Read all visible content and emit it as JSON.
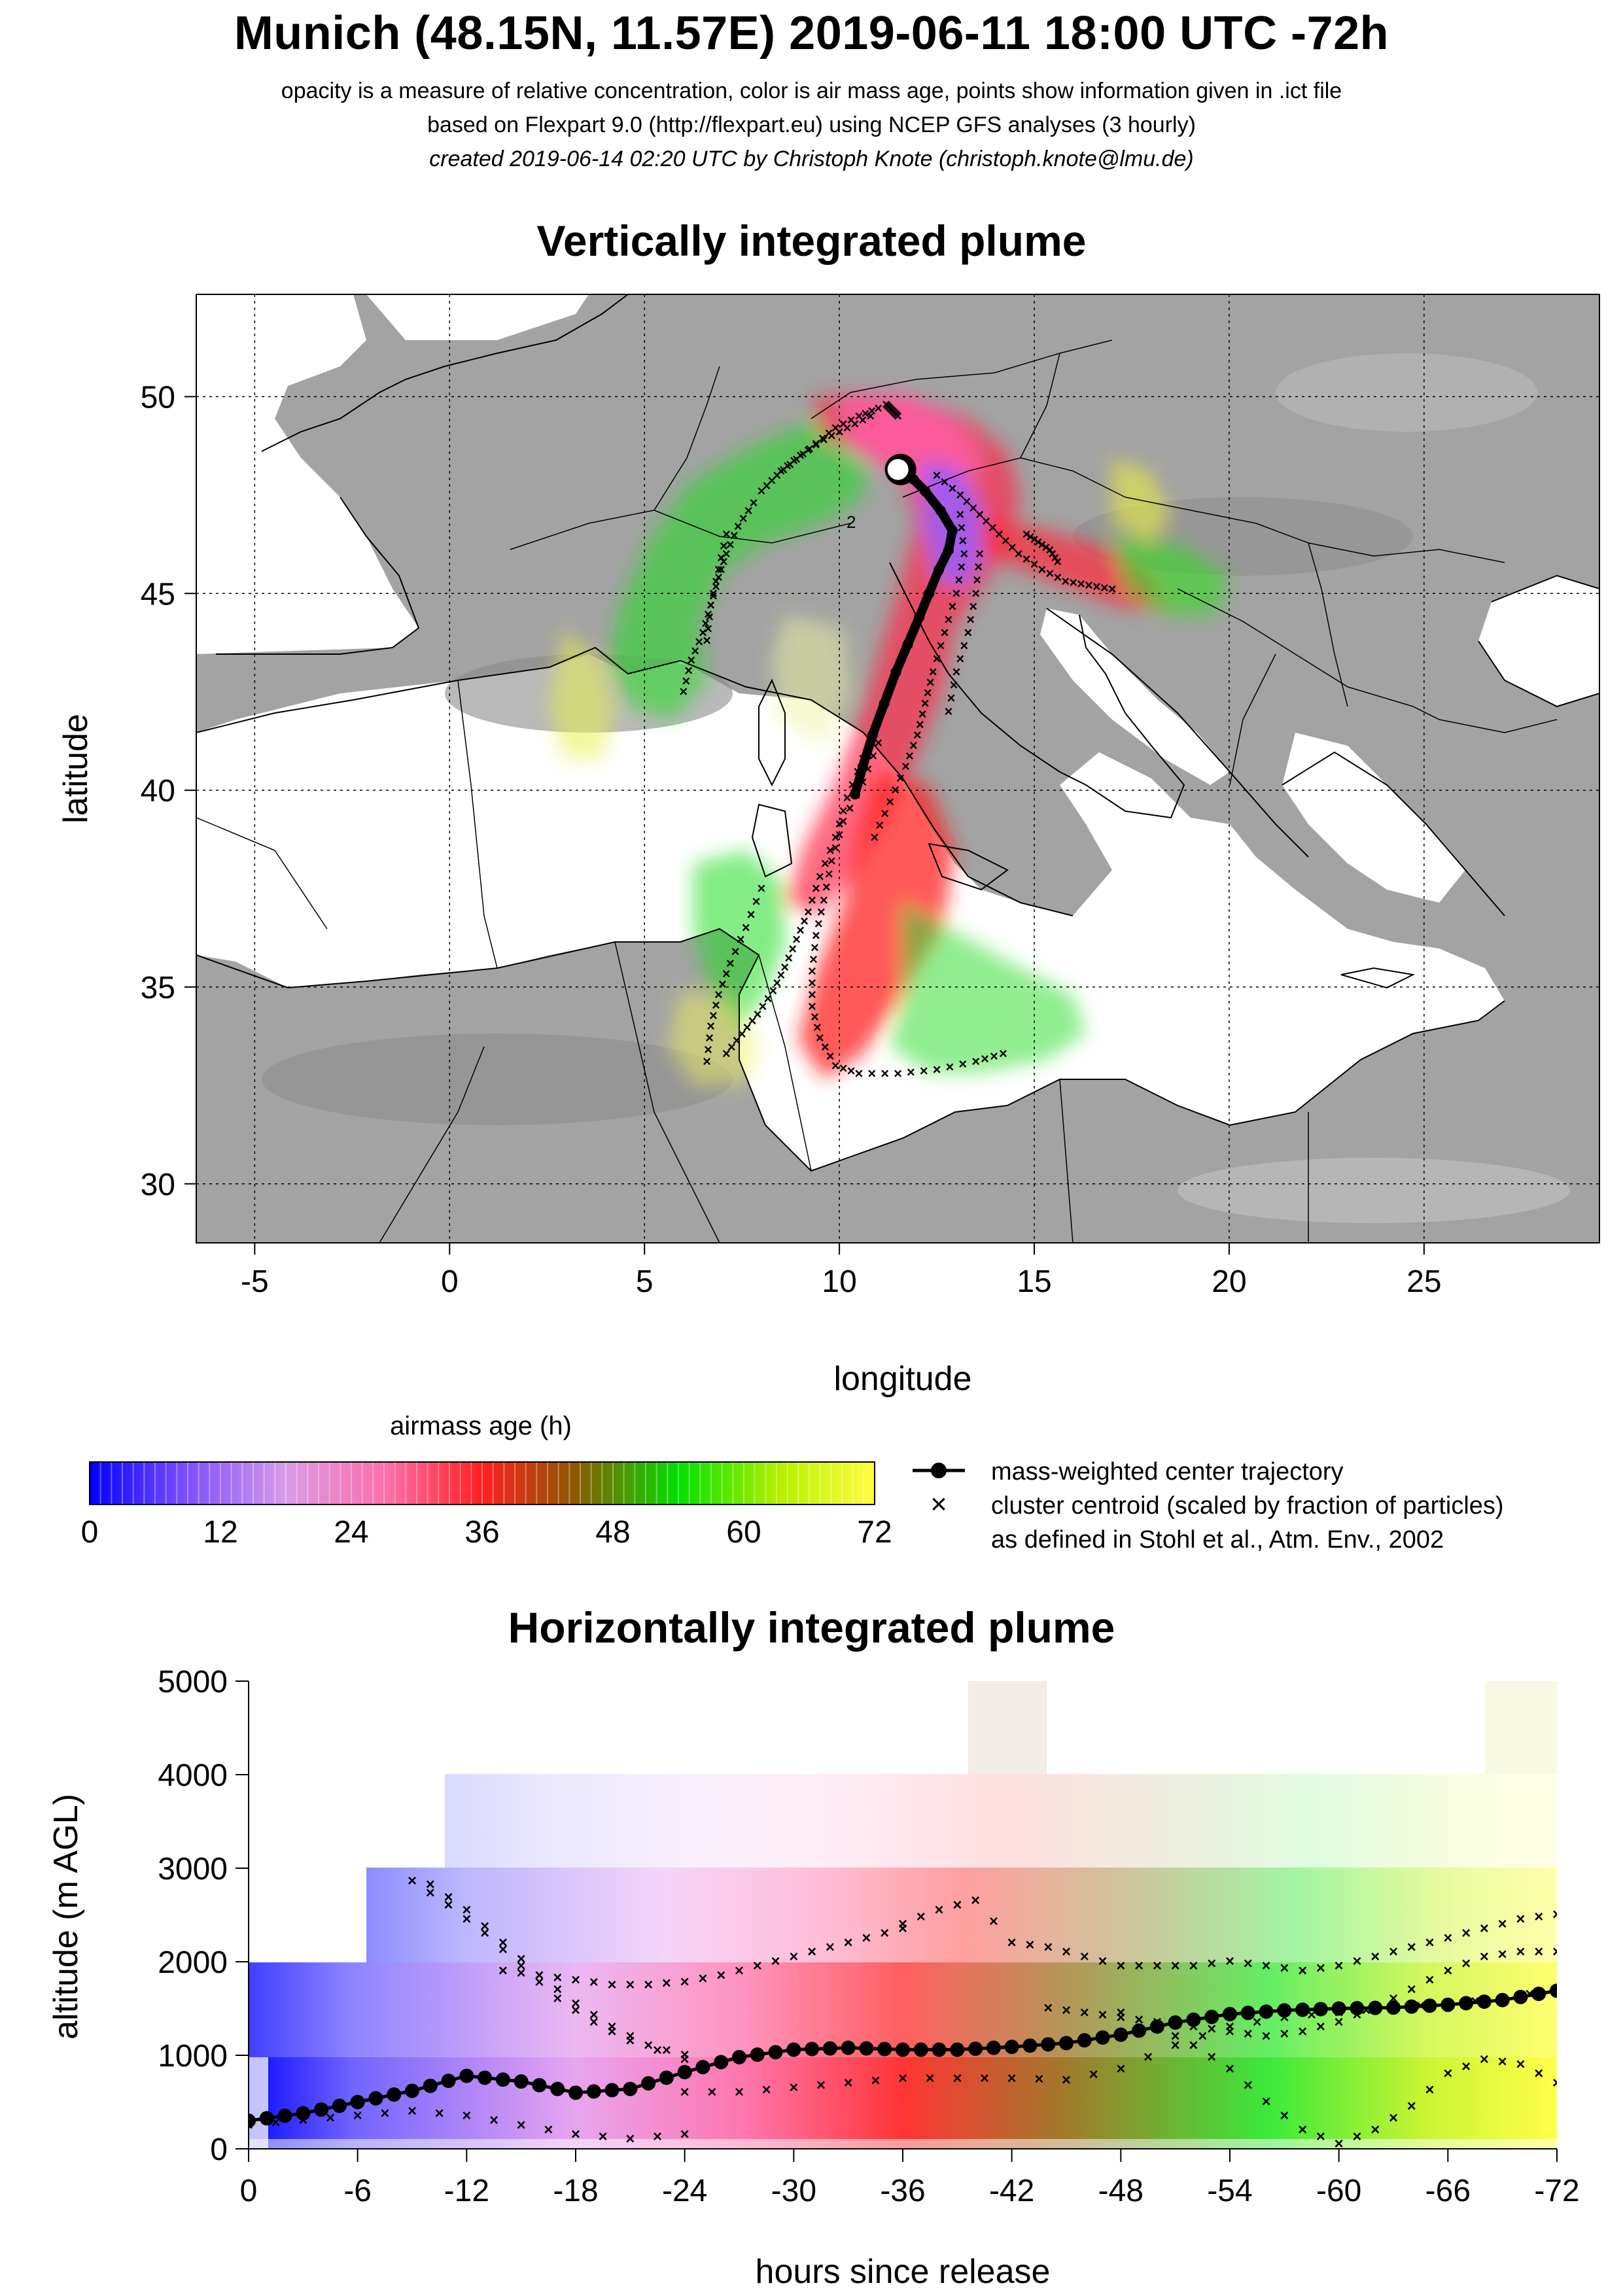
{
  "header": {
    "title": "Munich (48.15N, 11.57E) 2019-06-11 18:00 UTC -72h",
    "subtitle1": "opacity is a measure of relative concentration, color is air mass age, points show information given in .ict file",
    "subtitle2": "based on Flexpart 9.0 (http://flexpart.eu) using NCEP GFS analyses (3 hourly)",
    "subtitle3": "created 2019-06-14 02:20 UTC by Christoph Knote (christoph.knote@lmu.de)"
  },
  "colors": {
    "age_scale": [
      "#0000ff",
      "#7a4dff",
      "#d99be8",
      "#ff6ea8",
      "#ff1f1f",
      "#8b5a00",
      "#00e000",
      "#b8f000",
      "#ffff40"
    ],
    "land": "#9a9a9a",
    "sea": "#ffffff",
    "trajectory": "#000000"
  },
  "chart_data": [
    {
      "type": "scatter",
      "title": "Vertically integrated plume",
      "xlabel": "longitude",
      "ylabel": "latitude",
      "xlim": [
        -6.5,
        29.5
      ],
      "ylim": [
        28.5,
        52.6
      ],
      "x_ticks": [
        -5,
        0,
        5,
        10,
        15,
        20,
        25
      ],
      "y_ticks": [
        30,
        35,
        40,
        45,
        50
      ],
      "grid": true,
      "release_point": {
        "lon": 11.57,
        "lat": 48.15
      },
      "center_trajectory": {
        "lon": [
          11.57,
          11.9,
          12.2,
          12.6,
          12.9,
          12.8,
          12.55,
          12.3,
          12.05,
          11.75,
          11.45,
          11.15,
          10.85,
          10.6,
          10.4
        ],
        "lat": [
          48.15,
          47.9,
          47.6,
          47.1,
          46.6,
          46.1,
          45.6,
          45.0,
          44.4,
          43.7,
          43.0,
          42.2,
          41.4,
          40.6,
          39.9
        ]
      },
      "cluster_centroids": [
        {
          "lon": [
            11.0,
            10.5,
            9.9,
            9.4,
            8.9,
            8.4,
            8.0
          ],
          "lat": [
            49.7,
            49.5,
            49.2,
            48.8,
            48.4,
            48.0,
            47.6
          ]
        },
        {
          "lon": [
            11.2,
            11.3,
            11.4,
            11.5
          ],
          "lat": [
            49.8,
            49.7,
            49.6,
            49.5
          ]
        },
        {
          "lon": [
            10.8,
            10.2,
            9.6,
            9.0,
            8.5
          ],
          "lat": [
            49.5,
            49.2,
            48.9,
            48.5,
            48.1
          ]
        },
        {
          "lon": [
            7.8,
            7.4,
            7.1,
            6.9,
            6.7,
            6.5,
            6.2,
            6.0
          ],
          "lat": [
            47.3,
            46.7,
            46.0,
            45.4,
            44.7,
            44.0,
            43.3,
            42.5
          ]
        },
        {
          "lon": [
            7.1,
            6.9,
            6.7,
            6.6
          ],
          "lat": [
            46.5,
            45.6,
            44.7,
            43.8
          ]
        },
        {
          "lon": [
            12.5,
            13.1,
            13.6,
            14.1,
            14.6,
            15.2,
            15.8,
            16.4,
            17.0
          ],
          "lat": [
            48.0,
            47.5,
            47.0,
            46.5,
            46.0,
            45.6,
            45.3,
            45.2,
            45.1
          ]
        },
        {
          "lon": [
            14.8,
            15.1,
            15.4,
            15.6
          ],
          "lat": [
            46.5,
            46.3,
            46.1,
            45.8
          ]
        },
        {
          "lon": [
            13.1,
            13.2,
            13.0,
            12.7,
            12.4,
            12.2,
            12.0,
            11.7,
            11.3,
            10.9
          ],
          "lat": [
            47.0,
            46.0,
            45.0,
            44.0,
            43.0,
            42.2,
            41.4,
            40.6,
            39.7,
            38.8
          ]
        },
        {
          "lon": [
            13.6,
            13.5,
            13.3,
            13.0,
            12.8
          ],
          "lat": [
            46.0,
            45.0,
            44.0,
            43.0,
            42.0
          ]
        },
        {
          "lon": [
            10.6,
            10.2,
            9.9,
            9.5,
            9.2,
            8.9,
            8.6,
            8.3,
            7.9,
            7.5,
            7.1
          ],
          "lat": [
            40.8,
            39.8,
            38.8,
            37.8,
            36.9,
            36.2,
            35.5,
            34.9,
            34.3,
            33.8,
            33.3
          ]
        },
        {
          "lon": [
            11.0,
            10.6,
            10.1,
            9.8,
            9.6,
            9.4,
            9.3,
            9.3,
            9.5,
            9.9,
            10.5,
            11.5,
            12.5,
            13.5,
            14.2
          ],
          "lat": [
            41.2,
            40.2,
            39.2,
            38.2,
            37.2,
            36.3,
            35.4,
            34.5,
            33.7,
            33.0,
            32.8,
            32.8,
            32.9,
            33.1,
            33.3
          ]
        },
        {
          "lon": [
            8.0,
            7.6,
            7.2,
            6.9,
            6.7,
            6.6
          ],
          "lat": [
            37.5,
            36.5,
            35.6,
            34.8,
            34.0,
            33.1
          ]
        }
      ],
      "annotations": [
        "2"
      ]
    },
    {
      "type": "colorbar",
      "title": "airmass age (h)",
      "range": [
        0,
        72
      ],
      "tick_labels": [
        "0",
        "12",
        "24",
        "36",
        "48",
        "60",
        "72"
      ]
    },
    {
      "type": "line",
      "title": "Horizontally integrated plume",
      "xlabel": "hours since release",
      "ylabel": "altitude (m AGL)",
      "xlim": [
        0,
        -72
      ],
      "ylim": [
        0,
        5000
      ],
      "x_ticks": [
        0,
        -6,
        -12,
        -18,
        -24,
        -30,
        -36,
        -42,
        -48,
        -54,
        -60,
        -66,
        -72
      ],
      "x_tick_labels": [
        "0",
        "-6",
        "-12",
        "-18",
        "-24",
        "-30",
        "-36",
        "-42",
        "-48",
        "-54",
        "-60",
        "-66",
        "-72"
      ],
      "y_ticks": [
        0,
        1000,
        2000,
        3000,
        4000,
        5000
      ],
      "y_tick_labels": [
        "0",
        "1000",
        "2000",
        "3000",
        "4000",
        "5000"
      ],
      "center_trajectory": {
        "hours": [
          0,
          -3,
          -6,
          -9,
          -12,
          -15,
          -18,
          -21,
          -24,
          -27,
          -30,
          -33,
          -36,
          -39,
          -42,
          -45,
          -48,
          -51,
          -54,
          -57,
          -60,
          -63,
          -66,
          -69,
          -72
        ],
        "altitude": [
          300,
          380,
          500,
          620,
          780,
          720,
          600,
          640,
          820,
          980,
          1060,
          1080,
          1060,
          1060,
          1090,
          1130,
          1220,
          1350,
          1440,
          1480,
          1500,
          1510,
          1540,
          1590,
          1690
        ]
      },
      "cluster_centroids": [
        {
          "hours": [
            -9,
            -11,
            -13,
            -15,
            -17,
            -19,
            -21,
            -24
          ],
          "altitude": [
            2860,
            2600,
            2300,
            1950,
            1600,
            1350,
            1150,
            950
          ]
        },
        {
          "hours": [
            -10,
            -12,
            -14,
            -16,
            -18,
            -20,
            -22,
            -24
          ],
          "altitude": [
            2820,
            2550,
            2200,
            1850,
            1550,
            1300,
            1100,
            1000
          ]
        },
        {
          "hours": [
            -14,
            -16,
            -18,
            -20,
            -22,
            -24,
            -26,
            -28,
            -30,
            -32,
            -34,
            -36
          ],
          "altitude": [
            1900,
            1850,
            1800,
            1750,
            1750,
            1780,
            1850,
            1950,
            2050,
            2150,
            2250,
            2350
          ]
        },
        {
          "hours": [
            -36,
            -38,
            -40,
            -42,
            -44,
            -46,
            -48,
            -50,
            -52,
            -54,
            -56,
            -58,
            -60,
            -62,
            -64,
            -66,
            -68,
            -70,
            -72
          ],
          "altitude": [
            2400,
            2550,
            2650,
            2200,
            2150,
            2050,
            1950,
            1950,
            1950,
            2000,
            1950,
            1900,
            1950,
            2050,
            2150,
            2250,
            2350,
            2450,
            2500
          ]
        },
        {
          "hours": [
            -24,
            -27,
            -30,
            -33,
            -36,
            -39,
            -42,
            -45,
            -48,
            -51,
            -54,
            -57,
            -60,
            -63,
            -66,
            -69,
            -72
          ],
          "altitude": [
            600,
            600,
            650,
            700,
            750,
            750,
            750,
            730,
            850,
            1100,
            1300,
            1400,
            1450,
            1500,
            1550,
            1600,
            1700
          ]
        },
        {
          "hours": [
            0,
            -3,
            -6,
            -9,
            -12,
            -15,
            -18,
            -21,
            -24
          ],
          "altitude": [
            250,
            300,
            350,
            400,
            350,
            250,
            150,
            100,
            150
          ]
        },
        {
          "hours": [
            -48,
            -50,
            -52,
            -54,
            -56,
            -58,
            -60,
            -62,
            -64,
            -66,
            -68,
            -70,
            -72
          ],
          "altitude": [
            1450,
            1300,
            1100,
            850,
            500,
            200,
            50,
            200,
            450,
            800,
            950,
            900,
            700
          ]
        },
        {
          "hours": [
            -44,
            -46,
            -48,
            -50,
            -52,
            -54,
            -56,
            -58,
            -60,
            -62,
            -64,
            -66,
            -68,
            -70,
            -72
          ],
          "altitude": [
            1500,
            1450,
            1400,
            1350,
            1300,
            1250,
            1200,
            1250,
            1350,
            1500,
            1700,
            1900,
            2050,
            2100,
            2100
          ]
        }
      ]
    }
  ],
  "legend": {
    "center_label": "mass-weighted center trajectory",
    "cluster_label": "cluster centroid (scaled by fraction of particles)",
    "cluster_ref": "as defined in Stohl et al., Atm. Env., 2002"
  }
}
